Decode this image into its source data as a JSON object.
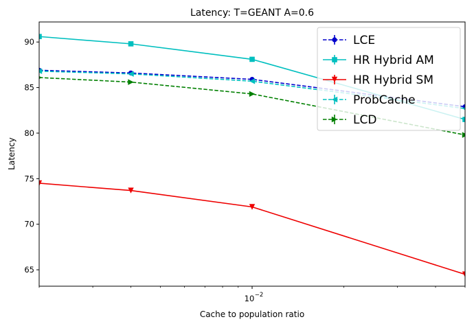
{
  "chart_data": {
    "type": "line",
    "title": "Latency: T=GEANT A=0.6",
    "xlabel": "Cache to population ratio",
    "ylabel": "Latency",
    "xscale": "log",
    "x": [
      0.002,
      0.004,
      0.01,
      0.05
    ],
    "xlim": [
      0.002,
      0.05
    ],
    "ylim": [
      63.2,
      92.2
    ],
    "yticks": [
      65,
      70,
      75,
      80,
      85,
      90
    ],
    "xtick_major": [
      {
        "value": 0.01,
        "label": "10",
        "exp": "−2"
      }
    ],
    "legend_position": "upper-right",
    "grid": false,
    "series": [
      {
        "name": "LCE",
        "color": "#0000cc",
        "dash": "dashed",
        "marker": "circle",
        "values": [
          86.9,
          86.6,
          85.9,
          82.9
        ]
      },
      {
        "name": "HR Hybrid AM",
        "color": "#00bfbf",
        "dash": "solid",
        "marker": "square",
        "values": [
          90.6,
          89.8,
          88.1,
          81.5
        ]
      },
      {
        "name": "HR Hybrid SM",
        "color": "#ee0000",
        "dash": "solid",
        "marker": "triangle-down",
        "values": [
          74.5,
          73.7,
          71.9,
          64.5
        ]
      },
      {
        "name": "ProbCache",
        "color": "#00bfbf",
        "dash": "dashed",
        "marker": "triangle-left",
        "values": [
          86.8,
          86.5,
          85.7,
          82.7
        ]
      },
      {
        "name": "LCD",
        "color": "#007f00",
        "dash": "dashed",
        "marker": "triangle-right",
        "values": [
          86.1,
          85.6,
          84.3,
          79.8
        ]
      }
    ]
  }
}
